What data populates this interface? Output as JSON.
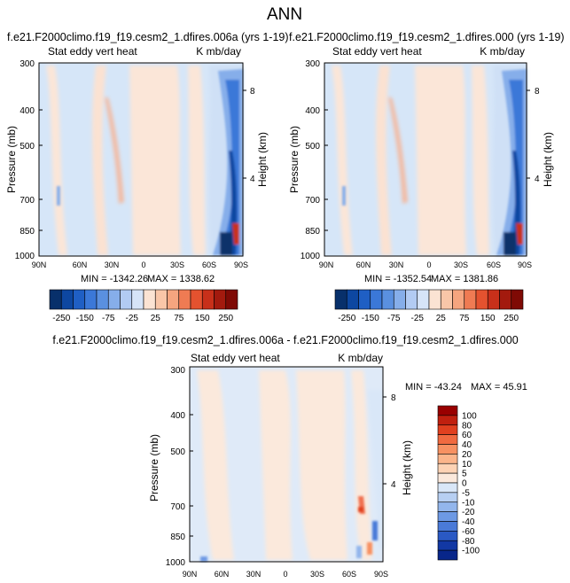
{
  "page_title": "ANN",
  "colors": {
    "neg_deep": "#08306b",
    "neg_light": "#cfe2f8",
    "pos_light": "#fbe3d3",
    "pos_deep": "#8b0000",
    "background_field": "#d6e6f8"
  },
  "chart_data": [
    {
      "type": "heatmap",
      "title": "f.e21.F2000climo.f19_f19.cesm2_1.dfires.006a (yrs 1-19)",
      "left_label": "Stat eddy vert heat",
      "right_label": "K mb/day",
      "ylabel": "Pressure (mb)",
      "y2label": "Height (km)",
      "x_ticks": [
        "90N",
        "60N",
        "30N",
        "0",
        "30S",
        "60S",
        "90S"
      ],
      "y_ticks": [
        "300",
        "400",
        "500",
        "700",
        "850",
        "1000"
      ],
      "y2_ticks": [
        "8",
        "4"
      ],
      "ylim": [
        1000,
        300
      ],
      "min_label": "MIN = -1342.26",
      "max_label": "MAX = 1338.62"
    },
    {
      "type": "heatmap",
      "title": "f.e21.F2000climo.f19_f19.cesm2_1.dfires.000 (yrs 1-19)",
      "left_label": "Stat eddy vert heat",
      "right_label": "K mb/day",
      "ylabel": "Pressure (mb)",
      "y2label": "Height (km)",
      "x_ticks": [
        "90N",
        "60N",
        "30N",
        "0",
        "30S",
        "60S",
        "90S"
      ],
      "y_ticks": [
        "300",
        "400",
        "500",
        "700",
        "850",
        "1000"
      ],
      "y2_ticks": [
        "8",
        "4"
      ],
      "ylim": [
        1000,
        300
      ],
      "min_label": "MIN = -1352.54",
      "max_label": "MAX = 1381.86"
    },
    {
      "type": "heatmap",
      "title": "f.e21.F2000climo.f19_f19.cesm2_1.dfires.006a - f.e21.F2000climo.f19_f19.cesm2_1.dfires.000",
      "left_label": "Stat eddy vert heat",
      "right_label": "K mb/day",
      "ylabel": "Pressure (mb)",
      "y2label": "Height (km)",
      "x_ticks": [
        "90N",
        "60N",
        "30N",
        "0",
        "30S",
        "60S",
        "90S"
      ],
      "y_ticks": [
        "300",
        "400",
        "500",
        "700",
        "850",
        "1000"
      ],
      "y2_ticks": [
        "8",
        "4"
      ],
      "ylim": [
        1000,
        300
      ],
      "min_label": "MIN = -43.24",
      "max_label": "MAX = 45.91"
    }
  ],
  "colorbar_top": {
    "labels": [
      "-250",
      "-150",
      "-75",
      "-25",
      "25",
      "75",
      "150",
      "250"
    ],
    "colors": [
      "#08306b",
      "#0d47a1",
      "#1f5fc4",
      "#3b78d8",
      "#5a90e0",
      "#86aeea",
      "#b2cbf3",
      "#d6e4f8",
      "#fbe3d3",
      "#f9c6a8",
      "#f5a57f",
      "#ef7b53",
      "#e4522f",
      "#c8301a",
      "#a31a0e",
      "#7f0a05"
    ]
  },
  "colorbar_diff": {
    "labels": [
      "100",
      "80",
      "60",
      "40",
      "20",
      "10",
      "5",
      "0",
      "-5",
      "-10",
      "-20",
      "-40",
      "-60",
      "-80",
      "-100"
    ],
    "colors": [
      "#990000",
      "#c0200f",
      "#e0401f",
      "#f06a40",
      "#f79162",
      "#fbb58b",
      "#fdd3b5",
      "#fbe9dc",
      "#d9e7f8",
      "#b7cff2",
      "#93b6ec",
      "#6d99e4",
      "#4a7ad8",
      "#2a59c4",
      "#1238a4",
      "#08268a"
    ]
  }
}
